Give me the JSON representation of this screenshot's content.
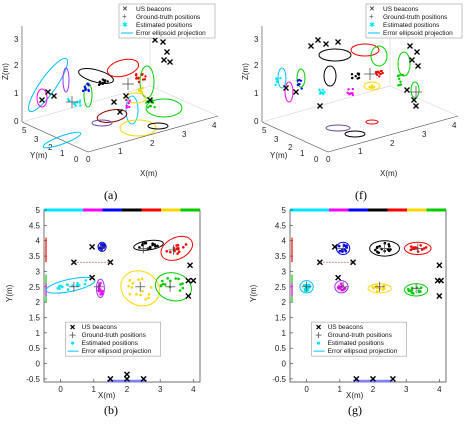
{
  "panels": [
    {
      "label": "(a)",
      "kind": "3d"
    },
    {
      "label": "(f)",
      "kind": "3d"
    },
    {
      "label": "(b)",
      "kind": "2d"
    },
    {
      "label": "(g)",
      "kind": "2d"
    }
  ],
  "legend": {
    "beacons": "US beacons",
    "ground_truth": "Ground-truth positions",
    "estimated": "Estimated positions",
    "ellipse": "Error ellipsoid projection"
  },
  "axes": {
    "x_label": "X(m)",
    "y_label": "Y(m)",
    "z_label": "Z(m)",
    "x_ticks": [
      "0",
      "1",
      "2",
      "3",
      "4"
    ],
    "y_ticks_2d": [
      "5",
      "4.5",
      "4",
      "3.5",
      "3",
      "2.5",
      "2",
      "1.5",
      "1",
      "0.5",
      "0",
      "-0.5"
    ],
    "y_ticks_3d": [
      "0",
      "1",
      "2",
      "3",
      "4",
      "5"
    ],
    "z_ticks": [
      "0",
      "1",
      "2",
      "3"
    ]
  },
  "colors": {
    "beacon": "#000000",
    "ground_truth": "#555555",
    "estimated": "#00e5ff",
    "ellipse": "#00bfff",
    "clusters": [
      "#00d0ff",
      "#ff00ff",
      "#0000ff",
      "#ff0000",
      "#000000",
      "#00cc00",
      "#8b0000",
      "#ffd700",
      "#6b4c9a"
    ]
  },
  "chart_data": [
    {
      "type": "scatter",
      "panel": "(b)",
      "xlabel": "X(m)",
      "ylabel": "Y(m)",
      "xlim": [
        -0.5,
        4.2
      ],
      "ylim": [
        -0.6,
        5
      ],
      "beacons": [
        {
          "x": 0.95,
          "y": 3.8
        },
        {
          "x": 0.95,
          "y": 2.8
        },
        {
          "x": 0.4,
          "y": 3.3
        },
        {
          "x": 1.5,
          "y": 3.3
        },
        {
          "x": 3.9,
          "y": 3.2
        },
        {
          "x": 3.85,
          "y": 2.7
        },
        {
          "x": 4.0,
          "y": 2.7
        },
        {
          "x": 3.85,
          "y": 2.2
        },
        {
          "x": 1.5,
          "y": -0.5
        },
        {
          "x": 2.0,
          "y": -0.5
        },
        {
          "x": 2.5,
          "y": -0.5
        },
        {
          "x": 2.0,
          "y": -0.35
        }
      ],
      "ground_truth": [
        {
          "x": 0.4,
          "y": 2.5
        },
        {
          "x": 1.15,
          "y": 2.5
        },
        {
          "x": 1.25,
          "y": 3.8
        },
        {
          "x": 2.5,
          "y": 3.75
        },
        {
          "x": 3.4,
          "y": 3.7
        },
        {
          "x": 2.4,
          "y": 2.5
        },
        {
          "x": 3.3,
          "y": 2.5
        }
      ],
      "clusters": [
        {
          "name": "cyan",
          "cx": 0.3,
          "cy": 2.55,
          "rx": 0.75,
          "ry": 0.2,
          "rot": -12
        },
        {
          "name": "magenta",
          "cx": 1.2,
          "cy": 2.45,
          "rx": 0.12,
          "ry": 0.3,
          "rot": 0
        },
        {
          "name": "blue",
          "cx": 1.25,
          "cy": 3.8,
          "rx": 0.12,
          "ry": 0.15,
          "rot": 0
        },
        {
          "name": "black",
          "cx": 2.65,
          "cy": 3.85,
          "rx": 0.45,
          "ry": 0.15,
          "rot": -8
        },
        {
          "name": "red",
          "cx": 3.5,
          "cy": 3.75,
          "rx": 0.5,
          "ry": 0.35,
          "rot": -25
        },
        {
          "name": "yellow",
          "cx": 2.4,
          "cy": 2.45,
          "rx": 0.6,
          "ry": 0.55,
          "rot": 25
        },
        {
          "name": "green",
          "cx": 3.4,
          "cy": 2.5,
          "rx": 0.55,
          "ry": 0.45,
          "rot": 15
        }
      ]
    },
    {
      "type": "scatter",
      "panel": "(g)",
      "xlabel": "X(m)",
      "ylabel": "Y(m)",
      "xlim": [
        -0.5,
        4.2
      ],
      "ylim": [
        -0.6,
        5
      ],
      "beacons": [
        {
          "x": 0.85,
          "y": 3.8
        },
        {
          "x": 0.95,
          "y": 2.8
        },
        {
          "x": 0.4,
          "y": 3.3
        },
        {
          "x": 1.4,
          "y": 3.3
        },
        {
          "x": 4.0,
          "y": 3.2
        },
        {
          "x": 3.95,
          "y": 2.7
        },
        {
          "x": 4.05,
          "y": 2.7
        },
        {
          "x": 4.0,
          "y": 2.2
        },
        {
          "x": 1.5,
          "y": -0.5
        },
        {
          "x": 2.0,
          "y": -0.5
        },
        {
          "x": 2.6,
          "y": -0.5
        }
      ],
      "ground_truth": [
        {
          "x": 0.0,
          "y": 2.5
        },
        {
          "x": 1.1,
          "y": 2.5
        },
        {
          "x": 1.1,
          "y": 3.75
        },
        {
          "x": 2.35,
          "y": 3.75
        },
        {
          "x": 3.35,
          "y": 3.75
        },
        {
          "x": 2.2,
          "y": 2.5
        },
        {
          "x": 3.3,
          "y": 2.45
        }
      ],
      "clusters": [
        {
          "name": "cyan",
          "cx": 0.0,
          "cy": 2.5,
          "rx": 0.2,
          "ry": 0.2,
          "rot": 0
        },
        {
          "name": "magenta",
          "cx": 1.05,
          "cy": 2.5,
          "rx": 0.2,
          "ry": 0.2,
          "rot": 0
        },
        {
          "name": "blue",
          "cx": 1.1,
          "cy": 3.75,
          "rx": 0.2,
          "ry": 0.2,
          "rot": 0
        },
        {
          "name": "black",
          "cx": 2.35,
          "cy": 3.75,
          "rx": 0.45,
          "ry": 0.25,
          "rot": 0
        },
        {
          "name": "red",
          "cx": 3.35,
          "cy": 3.75,
          "rx": 0.4,
          "ry": 0.2,
          "rot": 0
        },
        {
          "name": "yellow",
          "cx": 2.2,
          "cy": 2.45,
          "rx": 0.35,
          "ry": 0.15,
          "rot": 0
        },
        {
          "name": "green",
          "cx": 3.3,
          "cy": 2.4,
          "rx": 0.35,
          "ry": 0.2,
          "rot": 0
        }
      ]
    }
  ]
}
